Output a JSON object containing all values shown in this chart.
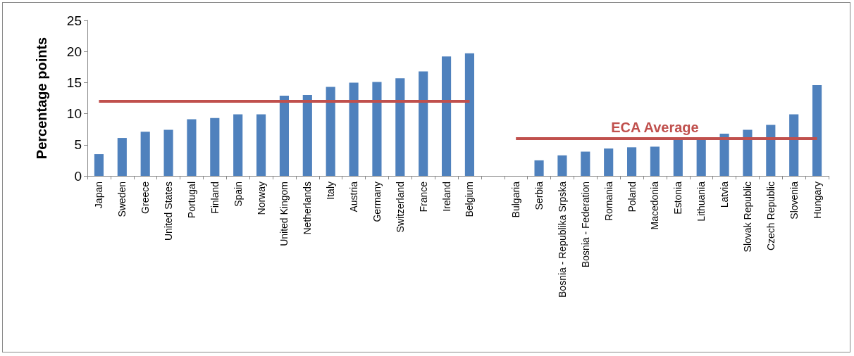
{
  "chart_data": {
    "type": "bar",
    "ylabel": "Percentage points",
    "categories": [
      "Japan",
      "Sweden",
      "Greece",
      "United States",
      "Portugal",
      "Finland",
      "Spain",
      "Norway",
      "United Kingom",
      "Netherlands",
      "Italy",
      "Austria",
      "Germany",
      "Switzerland",
      "France",
      "Ireland",
      "Belgium",
      null,
      "Bulgaria",
      "Serbia",
      "Bosnia - Republika Srpska",
      "Bosnia - Federation",
      "Romania",
      "Poland",
      "Macedonia",
      "Estonia",
      "Lithuania",
      "Latvia",
      "Slovak Republic",
      "Czech Republic",
      "Slovenia",
      "Hungary"
    ],
    "series": [
      {
        "color": "#4f81bd",
        "values": [
          3.5,
          6.1,
          7.1,
          7.4,
          9.1,
          9.3,
          9.9,
          9.9,
          12.9,
          13.0,
          14.3,
          15.0,
          15.1,
          15.7,
          16.8,
          19.2,
          19.7,
          null,
          0,
          2.5,
          3.3,
          3.9,
          4.4,
          4.6,
          4.7,
          5.8,
          5.9,
          6.8,
          7.4,
          8.2,
          9.9,
          14.6
        ]
      },
      {
        "type": "line",
        "color": "#c0504d",
        "values": [
          12,
          12,
          12,
          12,
          12,
          12,
          12,
          12,
          12,
          12,
          12,
          12,
          12,
          12,
          12,
          12,
          12,
          null,
          null,
          null,
          null,
          null,
          null,
          null,
          null,
          null,
          null,
          null,
          null,
          null,
          null,
          null
        ]
      },
      {
        "type": "line",
        "name": "ECA Average",
        "color": "#c0504d",
        "values": [
          null,
          null,
          null,
          null,
          null,
          null,
          null,
          null,
          null,
          null,
          null,
          null,
          null,
          null,
          null,
          null,
          null,
          null,
          6,
          6,
          6,
          6,
          6,
          6,
          6,
          6,
          6,
          6,
          6,
          6,
          6,
          6
        ]
      }
    ],
    "ylim": [
      0,
      25
    ],
    "yticks": [
      0,
      5,
      10,
      15,
      20,
      25
    ],
    "grid": false,
    "legend": false,
    "marker": "none"
  }
}
